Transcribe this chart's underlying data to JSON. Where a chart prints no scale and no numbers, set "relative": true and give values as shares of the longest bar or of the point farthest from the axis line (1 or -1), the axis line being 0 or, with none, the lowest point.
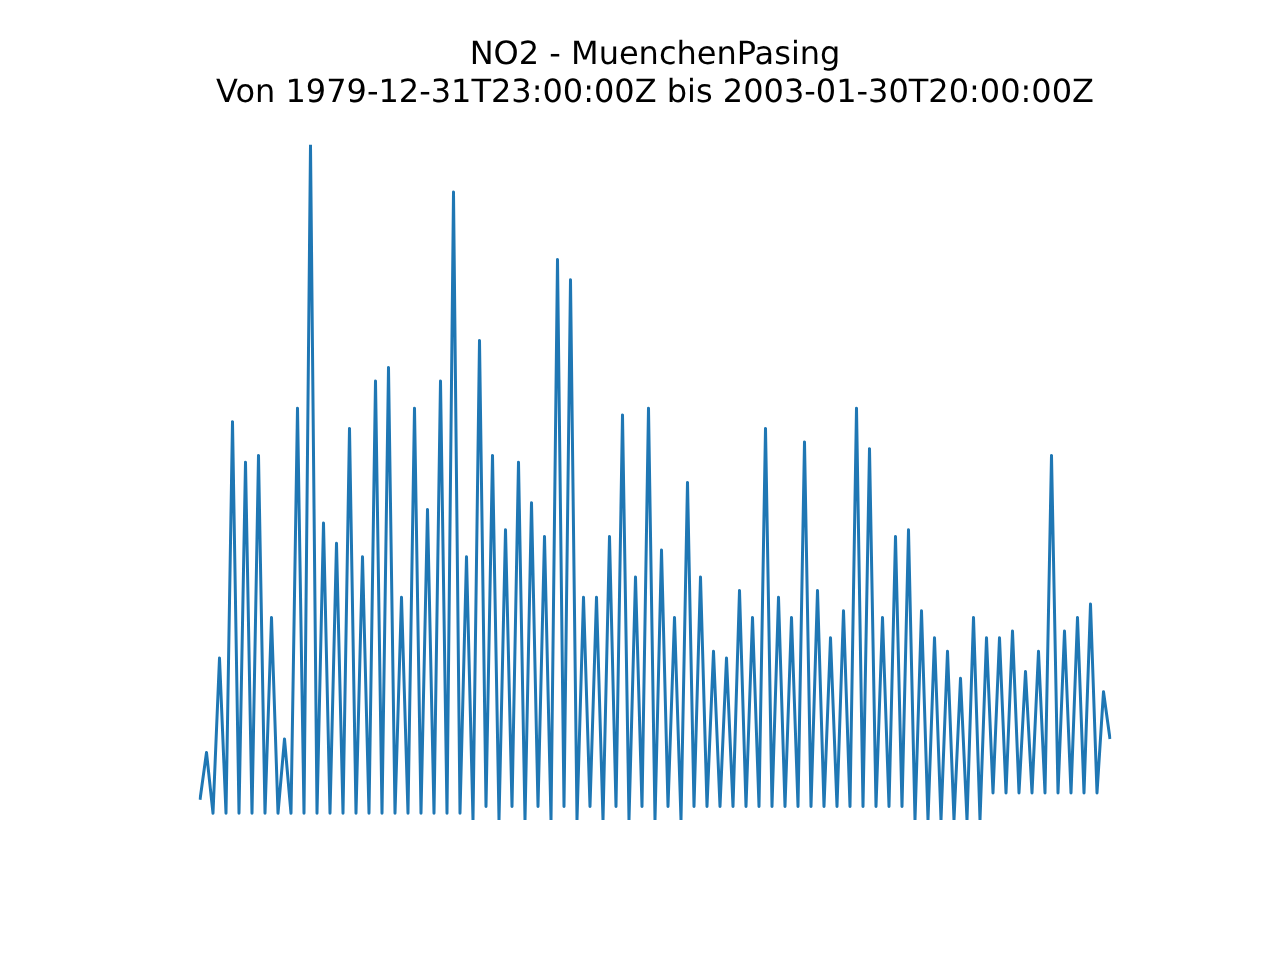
{
  "chart_data": {
    "type": "line",
    "title": "NO2 - MuenchenPasing",
    "subtitle": "Von 1979-12-31T23:00:00Z bis 2003-01-30T20:00:00Z",
    "relative": true,
    "legend": false,
    "tick_labels": false,
    "marker": "none",
    "categories": [
      null,
      null,
      null,
      null,
      null,
      null,
      null,
      null,
      null,
      null,
      null,
      null,
      null,
      null,
      null,
      null,
      null,
      null,
      null,
      null,
      null,
      null,
      null,
      null,
      null,
      null,
      null,
      null,
      null,
      null,
      null,
      null,
      null,
      null,
      null,
      null,
      null,
      null,
      null,
      null,
      null,
      null,
      null,
      null,
      null,
      null,
      null,
      null,
      null,
      null,
      null,
      null,
      null,
      null,
      null,
      null,
      null,
      null,
      null,
      null,
      null,
      null,
      null,
      null,
      null,
      null,
      null,
      null,
      null,
      null,
      null,
      null,
      null,
      null,
      null,
      null,
      null,
      null,
      null,
      null,
      null,
      null,
      null,
      null,
      null,
      null,
      null,
      null,
      null,
      null,
      null,
      null,
      null,
      null,
      null,
      null,
      null,
      null,
      null,
      null,
      null,
      null,
      null,
      null,
      null,
      null,
      null,
      null,
      null,
      null,
      null,
      null,
      null,
      null,
      null,
      null,
      null,
      null,
      null,
      null,
      null,
      null,
      null,
      null,
      null,
      null,
      null,
      null,
      null,
      null,
      null,
      null,
      null,
      null,
      null,
      null,
      null,
      null,
      null,
      null,
      null
    ],
    "series": [
      {
        "color": "#1f77b4",
        "values": [
          0.03,
          0.1,
          0.01,
          0.24,
          0.01,
          0.59,
          0.01,
          0.53,
          0.01,
          0.54,
          0.01,
          0.3,
          0.01,
          0.12,
          0.01,
          0.61,
          0.01,
          1.0,
          0.01,
          0.44,
          0.01,
          0.41,
          0.01,
          0.58,
          0.01,
          0.39,
          0.01,
          0.65,
          0.01,
          0.67,
          0.01,
          0.33,
          0.01,
          0.61,
          0.01,
          0.46,
          0.01,
          0.65,
          0.01,
          0.93,
          0.01,
          0.39,
          0.0,
          0.71,
          0.02,
          0.54,
          0.0,
          0.43,
          0.02,
          0.53,
          0.0,
          0.47,
          0.02,
          0.42,
          0.0,
          0.83,
          0.02,
          0.8,
          0.0,
          0.33,
          0.02,
          0.33,
          0.0,
          0.42,
          0.02,
          0.6,
          0.0,
          0.36,
          0.02,
          0.61,
          0.0,
          0.4,
          0.02,
          0.3,
          0.0,
          0.5,
          0.02,
          0.36,
          0.02,
          0.25,
          0.02,
          0.24,
          0.02,
          0.34,
          0.02,
          0.3,
          0.02,
          0.58,
          0.02,
          0.33,
          0.02,
          0.3,
          0.02,
          0.56,
          0.02,
          0.34,
          0.02,
          0.27,
          0.02,
          0.31,
          0.02,
          0.61,
          0.02,
          0.55,
          0.02,
          0.3,
          0.02,
          0.42,
          0.02,
          0.43,
          0.0,
          0.31,
          0.0,
          0.27,
          0.0,
          0.25,
          0.0,
          0.21,
          0.0,
          0.3,
          0.0,
          0.27,
          0.04,
          0.27,
          0.04,
          0.28,
          0.04,
          0.22,
          0.04,
          0.25,
          0.04,
          0.54,
          0.04,
          0.28,
          0.04,
          0.3,
          0.04,
          0.32,
          0.04,
          0.19,
          0.12
        ]
      }
    ]
  }
}
